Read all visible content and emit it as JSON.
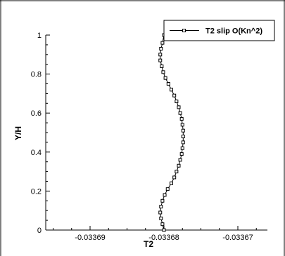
{
  "chart_data": {
    "type": "line",
    "title": "",
    "xlabel": "T2",
    "ylabel": "Y/H",
    "xlim": [
      -0.033696,
      -0.033666
    ],
    "ylim": [
      0,
      1
    ],
    "x_ticks": [
      -0.03369,
      -0.03368,
      -0.03367
    ],
    "x_tick_labels": [
      "-0.03369",
      "-0.03368",
      "-0.03367"
    ],
    "y_ticks": [
      0,
      0.2,
      0.4,
      0.6,
      0.8,
      1
    ],
    "y_tick_labels": [
      "0",
      "0.2",
      "0.4",
      "0.6",
      "0.8",
      "1"
    ],
    "grid": false,
    "legend_position": "top-right",
    "colors": {
      "line": "#000000",
      "marker_fill": "#ffffff",
      "axis": "#000000",
      "background": "#ffffff"
    },
    "series": [
      {
        "name": "T2  slip O(Kn^2)",
        "marker": "square",
        "x": [
          -0.03368,
          -0.0336802,
          -0.0336804,
          -0.0336805,
          -0.0336804,
          -0.0336802,
          -0.0336799,
          -0.0336795,
          -0.033679,
          -0.0336786,
          -0.0336783,
          -0.033678,
          -0.0336778,
          -0.0336776,
          -0.0336775,
          -0.0336774,
          -0.0336774,
          -0.0336774,
          -0.0336775,
          -0.0336776,
          -0.0336778,
          -0.033678,
          -0.0336783,
          -0.0336786,
          -0.033679,
          -0.0336794,
          -0.0336798,
          -0.0336801,
          -0.0336803,
          -0.0336805,
          -0.0336805,
          -0.0336804,
          -0.0336802,
          -0.03368
        ],
        "y": [
          0.0,
          0.03,
          0.06,
          0.09,
          0.12,
          0.15,
          0.18,
          0.21,
          0.24,
          0.27,
          0.3,
          0.33,
          0.36,
          0.39,
          0.42,
          0.45,
          0.48,
          0.51,
          0.54,
          0.57,
          0.6,
          0.63,
          0.66,
          0.69,
          0.72,
          0.75,
          0.78,
          0.81,
          0.84,
          0.87,
          0.9,
          0.93,
          0.96,
          1.0
        ]
      }
    ]
  }
}
